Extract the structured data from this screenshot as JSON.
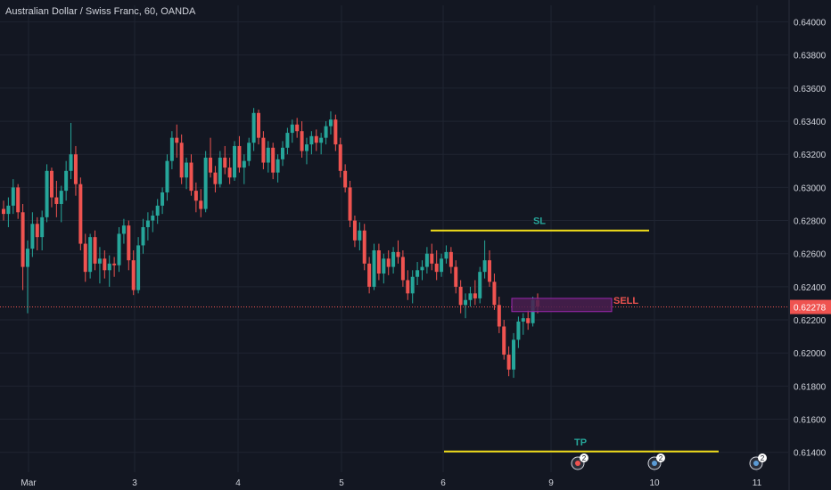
{
  "header": {
    "title": "Australian Dollar / Swiss Franc, 60, OANDA"
  },
  "theme": {
    "background": "#131722",
    "grid": "#1f2431",
    "axis_text": "#d1d4dc",
    "up_candle": "#26a69a",
    "down_candle": "#ef5350",
    "price_line": "#ef5350",
    "level_line": "#f2de1a",
    "sl_label_color": "#26a69a",
    "tp_label_color": "#26a69a",
    "sell_label_color": "#ef5350",
    "sell_box_fill": "#4a1f4f",
    "sell_box_stroke": "#9c27b0"
  },
  "chart_data": {
    "type": "candlestick",
    "title": "Australian Dollar / Swiss Franc, 60, OANDA",
    "ylim": [
      0.6128,
      0.641
    ],
    "y_ticks": [
      "0.64000",
      "0.63800",
      "0.63600",
      "0.63400",
      "0.63200",
      "0.63000",
      "0.62800",
      "0.62600",
      "0.62400",
      "0.62200",
      "0.62000",
      "0.61800",
      "0.61600",
      "0.61400"
    ],
    "y_tick_values": [
      0.64,
      0.638,
      0.636,
      0.634,
      0.632,
      0.63,
      0.628,
      0.626,
      0.624,
      0.622,
      0.62,
      0.618,
      0.616,
      0.614
    ],
    "x_ticks": [
      "Mar",
      "3",
      "4",
      "5",
      "6",
      "9",
      "10",
      "11"
    ],
    "x_tick_bars": [
      2,
      30,
      59,
      88,
      117,
      146,
      175,
      204
    ],
    "current_price": 0.62278,
    "current_price_label": "0.62278",
    "candles": [
      [
        0.6287,
        0.6292,
        0.628,
        0.6284
      ],
      [
        0.6284,
        0.6294,
        0.6276,
        0.6289
      ],
      [
        0.6289,
        0.6305,
        0.6284,
        0.63
      ],
      [
        0.63,
        0.6302,
        0.6281,
        0.6285
      ],
      [
        0.6285,
        0.629,
        0.6238,
        0.6252
      ],
      [
        0.6252,
        0.6268,
        0.6224,
        0.6263
      ],
      [
        0.6263,
        0.6285,
        0.6258,
        0.6278
      ],
      [
        0.6278,
        0.6282,
        0.6262,
        0.627
      ],
      [
        0.627,
        0.6286,
        0.6262,
        0.6282
      ],
      [
        0.6282,
        0.6314,
        0.6279,
        0.631
      ],
      [
        0.631,
        0.6312,
        0.6288,
        0.6294
      ],
      [
        0.6294,
        0.6304,
        0.6282,
        0.629
      ],
      [
        0.629,
        0.6301,
        0.6279,
        0.6298
      ],
      [
        0.6298,
        0.6316,
        0.6292,
        0.631
      ],
      [
        0.631,
        0.6339,
        0.6305,
        0.632
      ],
      [
        0.632,
        0.6325,
        0.6295,
        0.6302
      ],
      [
        0.6302,
        0.6306,
        0.6262,
        0.6266
      ],
      [
        0.6266,
        0.6272,
        0.6243,
        0.6249
      ],
      [
        0.6249,
        0.6272,
        0.6245,
        0.627
      ],
      [
        0.627,
        0.6274,
        0.625,
        0.6254
      ],
      [
        0.6254,
        0.6264,
        0.6242,
        0.6257
      ],
      [
        0.6257,
        0.6262,
        0.6245,
        0.625
      ],
      [
        0.625,
        0.6259,
        0.624,
        0.6254
      ],
      [
        0.6254,
        0.6258,
        0.6246,
        0.6253
      ],
      [
        0.6253,
        0.6276,
        0.6249,
        0.6272
      ],
      [
        0.6272,
        0.6281,
        0.6266,
        0.6277
      ],
      [
        0.6277,
        0.628,
        0.625,
        0.6256
      ],
      [
        0.6256,
        0.6262,
        0.6235,
        0.6238
      ],
      [
        0.6238,
        0.627,
        0.6236,
        0.6265
      ],
      [
        0.6265,
        0.6281,
        0.626,
        0.6276
      ],
      [
        0.6276,
        0.6285,
        0.6268,
        0.628
      ],
      [
        0.628,
        0.6286,
        0.6273,
        0.6283
      ],
      [
        0.6283,
        0.6293,
        0.6278,
        0.6289
      ],
      [
        0.6289,
        0.63,
        0.6284,
        0.6297
      ],
      [
        0.6297,
        0.632,
        0.6292,
        0.6316
      ],
      [
        0.6316,
        0.6334,
        0.6311,
        0.633
      ],
      [
        0.633,
        0.6338,
        0.6318,
        0.6327
      ],
      [
        0.6327,
        0.6332,
        0.6302,
        0.6306
      ],
      [
        0.6306,
        0.6318,
        0.6299,
        0.6315
      ],
      [
        0.6315,
        0.632,
        0.6295,
        0.6298
      ],
      [
        0.6298,
        0.6303,
        0.6285,
        0.6292
      ],
      [
        0.6292,
        0.6299,
        0.6282,
        0.6287
      ],
      [
        0.6287,
        0.6322,
        0.6285,
        0.6318
      ],
      [
        0.6318,
        0.633,
        0.6306,
        0.6309
      ],
      [
        0.6309,
        0.6313,
        0.6297,
        0.6302
      ],
      [
        0.6302,
        0.6322,
        0.63,
        0.6318
      ],
      [
        0.6318,
        0.6325,
        0.6308,
        0.6312
      ],
      [
        0.6312,
        0.6318,
        0.6302,
        0.6306
      ],
      [
        0.6306,
        0.6328,
        0.6304,
        0.6325
      ],
      [
        0.6325,
        0.6331,
        0.6309,
        0.6312
      ],
      [
        0.6312,
        0.632,
        0.6302,
        0.6316
      ],
      [
        0.6316,
        0.633,
        0.6313,
        0.6327
      ],
      [
        0.6327,
        0.6348,
        0.6322,
        0.6345
      ],
      [
        0.6345,
        0.6347,
        0.6326,
        0.633
      ],
      [
        0.633,
        0.6334,
        0.6311,
        0.6315
      ],
      [
        0.6315,
        0.6328,
        0.6309,
        0.6324
      ],
      [
        0.6324,
        0.6327,
        0.6305,
        0.6309
      ],
      [
        0.6309,
        0.632,
        0.6303,
        0.6317
      ],
      [
        0.6317,
        0.6328,
        0.6313,
        0.6324
      ],
      [
        0.6324,
        0.6336,
        0.632,
        0.6333
      ],
      [
        0.6333,
        0.6341,
        0.6327,
        0.6338
      ],
      [
        0.6338,
        0.6342,
        0.633,
        0.6334
      ],
      [
        0.6334,
        0.634,
        0.6318,
        0.6322
      ],
      [
        0.6322,
        0.633,
        0.6314,
        0.6326
      ],
      [
        0.6326,
        0.6334,
        0.632,
        0.6331
      ],
      [
        0.6331,
        0.6335,
        0.6322,
        0.6327
      ],
      [
        0.6327,
        0.6333,
        0.632,
        0.633
      ],
      [
        0.633,
        0.634,
        0.6326,
        0.6337
      ],
      [
        0.6337,
        0.6346,
        0.6332,
        0.6341
      ],
      [
        0.6341,
        0.6344,
        0.6322,
        0.6326
      ],
      [
        0.6326,
        0.633,
        0.6306,
        0.631
      ],
      [
        0.631,
        0.6314,
        0.6297,
        0.63
      ],
      [
        0.63,
        0.6304,
        0.6276,
        0.628
      ],
      [
        0.628,
        0.6283,
        0.6264,
        0.6268
      ],
      [
        0.6268,
        0.6279,
        0.6262,
        0.6274
      ],
      [
        0.6274,
        0.6278,
        0.625,
        0.6254
      ],
      [
        0.6254,
        0.6258,
        0.6236,
        0.624
      ],
      [
        0.624,
        0.6266,
        0.6238,
        0.6262
      ],
      [
        0.6262,
        0.6266,
        0.6244,
        0.6248
      ],
      [
        0.6248,
        0.626,
        0.6242,
        0.6257
      ],
      [
        0.6257,
        0.6262,
        0.6247,
        0.6252
      ],
      [
        0.6252,
        0.6264,
        0.6248,
        0.6261
      ],
      [
        0.6261,
        0.6268,
        0.6254,
        0.6258
      ],
      [
        0.6258,
        0.6262,
        0.624,
        0.6244
      ],
      [
        0.6244,
        0.625,
        0.6232,
        0.6236
      ],
      [
        0.6236,
        0.625,
        0.623,
        0.6246
      ],
      [
        0.6246,
        0.6255,
        0.6241,
        0.625
      ],
      [
        0.625,
        0.6256,
        0.6244,
        0.6252
      ],
      [
        0.6252,
        0.6264,
        0.6248,
        0.626
      ],
      [
        0.626,
        0.6266,
        0.625,
        0.6254
      ],
      [
        0.6254,
        0.6262,
        0.6244,
        0.6249
      ],
      [
        0.6249,
        0.626,
        0.6246,
        0.6257
      ],
      [
        0.6257,
        0.6265,
        0.6254,
        0.6261
      ],
      [
        0.6261,
        0.6264,
        0.6248,
        0.6252
      ],
      [
        0.6252,
        0.6256,
        0.6236,
        0.624
      ],
      [
        0.624,
        0.6244,
        0.6224,
        0.6229
      ],
      [
        0.6229,
        0.6236,
        0.6221,
        0.6232
      ],
      [
        0.6232,
        0.624,
        0.6228,
        0.6236
      ],
      [
        0.6236,
        0.6244,
        0.6229,
        0.6233
      ],
      [
        0.6233,
        0.6252,
        0.623,
        0.6249
      ],
      [
        0.6249,
        0.6268,
        0.6245,
        0.6256
      ],
      [
        0.6256,
        0.6262,
        0.624,
        0.6243
      ],
      [
        0.6243,
        0.6248,
        0.6226,
        0.6229
      ],
      [
        0.6229,
        0.6234,
        0.6212,
        0.6216
      ],
      [
        0.6216,
        0.622,
        0.6196,
        0.6199
      ],
      [
        0.6199,
        0.6204,
        0.6186,
        0.619
      ],
      [
        0.619,
        0.6212,
        0.6185,
        0.6208
      ],
      [
        0.6208,
        0.6222,
        0.6203,
        0.6219
      ],
      [
        0.6219,
        0.6224,
        0.6211,
        0.6221
      ],
      [
        0.6221,
        0.6226,
        0.6214,
        0.6218
      ],
      [
        0.6218,
        0.6234,
        0.6216,
        0.6232
      ],
      [
        0.6232,
        0.6236,
        0.6224,
        0.6228
      ]
    ],
    "levels": [
      {
        "label": "SL",
        "price": 0.6274
      },
      {
        "label": "TP",
        "price": 0.61405
      }
    ],
    "zones": [
      {
        "label": "SELL",
        "price_top": 0.6233,
        "price_bottom": 0.6225
      }
    ],
    "events": [
      {
        "icon": "economic-event-icon",
        "count": "2"
      },
      {
        "icon": "economic-event-icon",
        "count": "2"
      },
      {
        "icon": "economic-event-icon",
        "count": "2"
      }
    ]
  }
}
